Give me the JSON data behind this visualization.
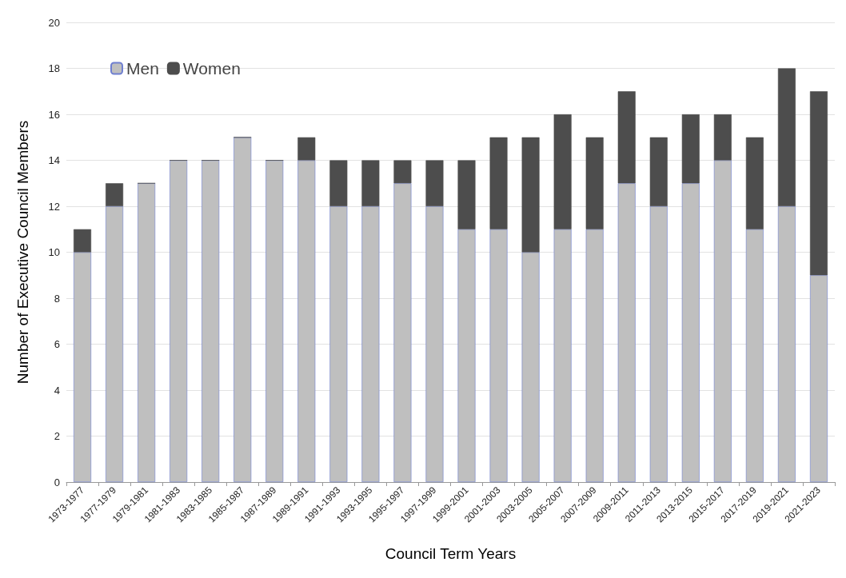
{
  "chart_data": {
    "type": "bar",
    "stacked": true,
    "xlabel": "Council Term Years",
    "ylabel": "Number of Executive Council Members",
    "categories": [
      "1973-1977",
      "1977-1979",
      "1979-1981",
      "1981-1983",
      "1983-1985",
      "1985-1987",
      "1987-1989",
      "1989-1991",
      "1991-1993",
      "1993-1995",
      "1995-1997",
      "1997-1999",
      "1999-2001",
      "2001-2003",
      "2003-2005",
      "2005-2007",
      "2007-2009",
      "2009-2011",
      "2011-2013",
      "2013-2015",
      "2015-2017",
      "2017-2019",
      "2019-2021",
      "2021-2023"
    ],
    "series": [
      {
        "name": "Men",
        "color": "#bfbfbf",
        "values": [
          10,
          12,
          13,
          14,
          14,
          15,
          14,
          14,
          12,
          12,
          13,
          12,
          11,
          11,
          10,
          11,
          11,
          13,
          12,
          13,
          14,
          11,
          12,
          9
        ]
      },
      {
        "name": "Women",
        "color": "#4d4d4d",
        "values": [
          1,
          1,
          0,
          0,
          0,
          0,
          0,
          1,
          2,
          2,
          1,
          2,
          3,
          4,
          5,
          5,
          4,
          4,
          3,
          3,
          2,
          4,
          6,
          8
        ]
      }
    ],
    "ylim": [
      0,
      20
    ],
    "yticks": [
      0,
      2,
      4,
      6,
      8,
      10,
      12,
      14,
      16,
      18,
      20
    ],
    "grid": "y",
    "legend": "top left"
  }
}
